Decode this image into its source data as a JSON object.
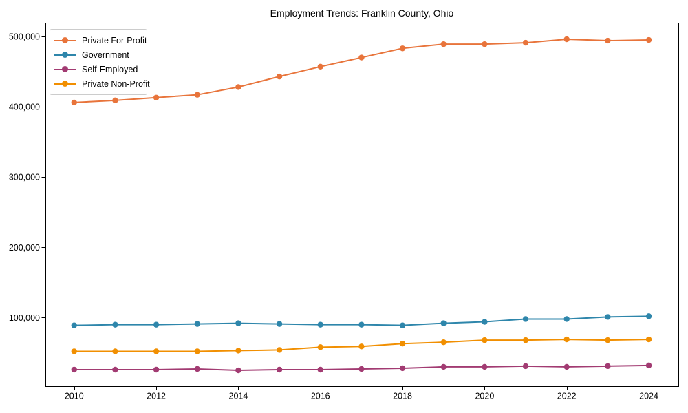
{
  "chart_data": {
    "type": "line",
    "title": "Employment Trends: Franklin County, Ohio",
    "xlabel": "",
    "ylabel": "",
    "x": [
      2010,
      2011,
      2012,
      2013,
      2014,
      2015,
      2016,
      2017,
      2018,
      2019,
      2020,
      2021,
      2022,
      2023,
      2024
    ],
    "series": [
      {
        "name": "Private For-Profit",
        "color": "#E8743B",
        "values": [
          406000,
          409000,
          413000,
          417000,
          428000,
          443000,
          457000,
          470000,
          483000,
          489000,
          489000,
          491000,
          496000,
          494000,
          495000
        ]
      },
      {
        "name": "Government",
        "color": "#2E86AB",
        "values": [
          89000,
          90000,
          90000,
          91000,
          92000,
          91000,
          90000,
          90000,
          89000,
          92000,
          94000,
          98000,
          98000,
          101000,
          102000
        ]
      },
      {
        "name": "Self-Employed",
        "color": "#A23B72",
        "values": [
          26000,
          26000,
          26000,
          27000,
          25000,
          26000,
          26000,
          27000,
          28000,
          30000,
          30000,
          31000,
          30000,
          31000,
          32000
        ]
      },
      {
        "name": "Private Non-Profit",
        "color": "#F18F01",
        "values": [
          52000,
          52000,
          52000,
          52000,
          53000,
          54000,
          58000,
          59000,
          63000,
          65000,
          68000,
          68000,
          69000,
          68000,
          69000
        ]
      }
    ],
    "xticks": {
      "values": [
        2010,
        2012,
        2014,
        2016,
        2018,
        2020,
        2022,
        2024
      ],
      "labels": [
        "2010",
        "2012",
        "2014",
        "2016",
        "2018",
        "2020",
        "2022",
        "2024"
      ]
    },
    "yticks": {
      "values": [
        100000,
        200000,
        300000,
        400000,
        500000
      ],
      "labels": [
        "100,000",
        "200,000",
        "300,000",
        "400,000",
        "500,000"
      ]
    },
    "xlim": [
      2009.3,
      2024.72
    ],
    "ylim": [
      2500,
      519500
    ],
    "grid": false,
    "legend_position": "upper-left",
    "axis_color": "#000000",
    "background_color": "#ffffff"
  }
}
